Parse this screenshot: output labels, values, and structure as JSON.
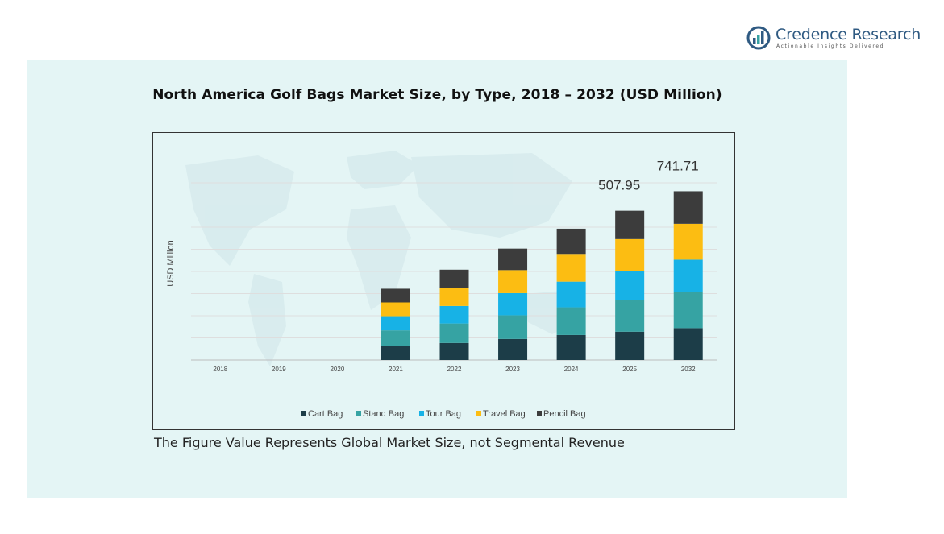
{
  "brand": {
    "name": "Credence Research",
    "tagline": "Actionable Insights Delivered"
  },
  "footnote": "The Figure Value Represents Global Market Size, not Segmental Revenue",
  "colors": {
    "panel": "#e4f5f5",
    "cart": "#1c3d48",
    "stand": "#36a3a3",
    "tour": "#17b2e6",
    "travel": "#fcbd12",
    "pencil": "#3c3c3c",
    "brand": "#2f5a82"
  },
  "chart_data": {
    "type": "bar",
    "stacked": true,
    "title": "North America Golf Bags Market Size, by Type, 2018 – 2032 (USD Million)",
    "ylabel": "USD Million",
    "xlabel": "",
    "ylim": [
      0,
      800
    ],
    "grid": true,
    "legend_position": "bottom",
    "categories": [
      "2018",
      "2019",
      "2020",
      "2021",
      "2022",
      "2023",
      "2024",
      "2025",
      "2032"
    ],
    "series": [
      {
        "name": "Cart Bag",
        "color": "#1c3d48",
        "values": [
          0,
          0,
          0,
          62,
          77,
          95,
          113,
          128,
          144
        ]
      },
      {
        "name": "Stand Bag",
        "color": "#36a3a3",
        "values": [
          0,
          0,
          0,
          72,
          88,
          107,
          125,
          144,
          162
        ]
      },
      {
        "name": "Tour Bag",
        "color": "#17b2e6",
        "values": [
          0,
          0,
          0,
          64,
          79,
          100,
          116,
          130,
          147
        ]
      },
      {
        "name": "Travel Bag",
        "color": "#fcbd12",
        "values": [
          0,
          0,
          0,
          62,
          82,
          104,
          125,
          144,
          162
        ]
      },
      {
        "name": "Pencil Bag",
        "color": "#3c3c3c",
        "values": [
          0,
          0,
          0,
          62,
          82,
          97,
          114,
          128,
          147
        ]
      }
    ],
    "annotations": [
      {
        "category": "2025",
        "label": "507.95"
      },
      {
        "category": "2032",
        "label": "741.71"
      }
    ]
  }
}
